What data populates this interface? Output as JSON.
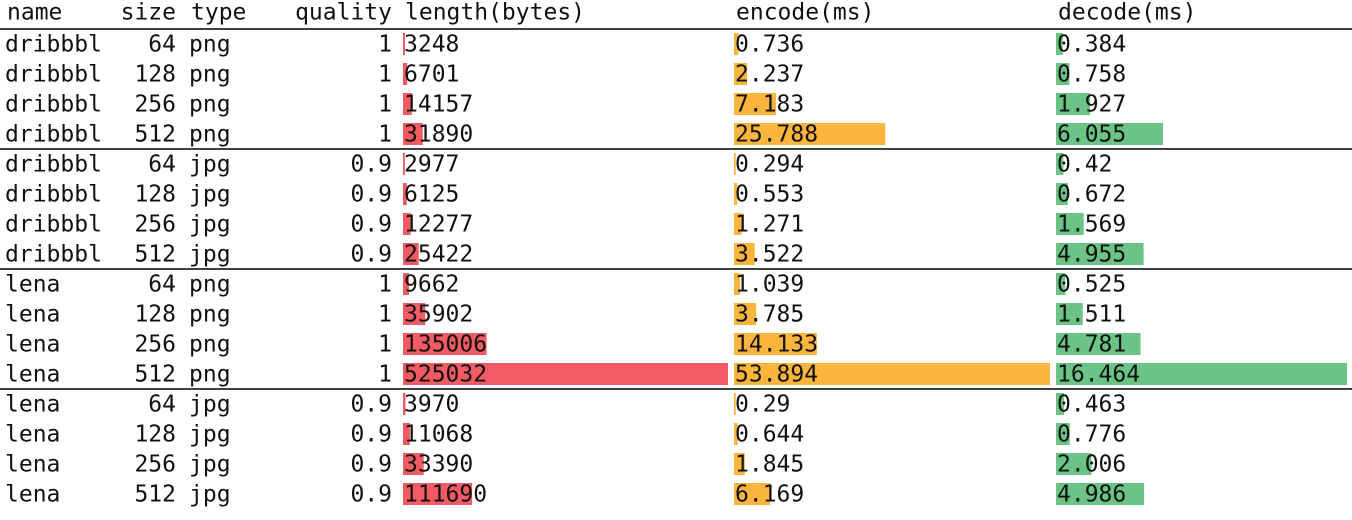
{
  "table": {
    "header": [
      "name",
      "size",
      "type",
      "quality",
      "length(bytes)",
      "encode(ms)",
      "decode(ms)"
    ],
    "groups": [
      [
        [
          "dribbbl",
          64,
          "png",
          1,
          3248,
          0.736,
          0.384
        ],
        [
          "dribbbl",
          128,
          "png",
          1,
          6701,
          2.237,
          0.758
        ],
        [
          "dribbbl",
          256,
          "png",
          1,
          14157,
          7.183,
          1.927
        ],
        [
          "dribbbl",
          512,
          "png",
          1,
          31890,
          25.788,
          6.055
        ]
      ],
      [
        [
          "dribbbl",
          64,
          "jpg",
          0.9,
          2977,
          0.294,
          0.42
        ],
        [
          "dribbbl",
          128,
          "jpg",
          0.9,
          6125,
          0.553,
          0.672
        ],
        [
          "dribbbl",
          256,
          "jpg",
          0.9,
          12277,
          1.271,
          1.569
        ],
        [
          "dribbbl",
          512,
          "jpg",
          0.9,
          25422,
          3.522,
          4.955
        ]
      ],
      [
        [
          "lena",
          64,
          "png",
          1,
          9662,
          1.039,
          0.525
        ],
        [
          "lena",
          128,
          "png",
          1,
          35902,
          3.785,
          1.511
        ],
        [
          "lena",
          256,
          "png",
          1,
          135006,
          14.133,
          4.781
        ],
        [
          "lena",
          512,
          "png",
          1,
          525032,
          53.894,
          16.464
        ]
      ],
      [
        [
          "lena",
          64,
          "jpg",
          0.9,
          3970,
          0.29,
          0.463
        ],
        [
          "lena",
          128,
          "jpg",
          0.9,
          11068,
          0.644,
          0.776
        ],
        [
          "lena",
          256,
          "jpg",
          0.9,
          33390,
          1.845,
          2.006
        ],
        [
          "lena",
          512,
          "jpg",
          0.9,
          111690,
          6.169,
          4.986
        ]
      ]
    ]
  }
}
